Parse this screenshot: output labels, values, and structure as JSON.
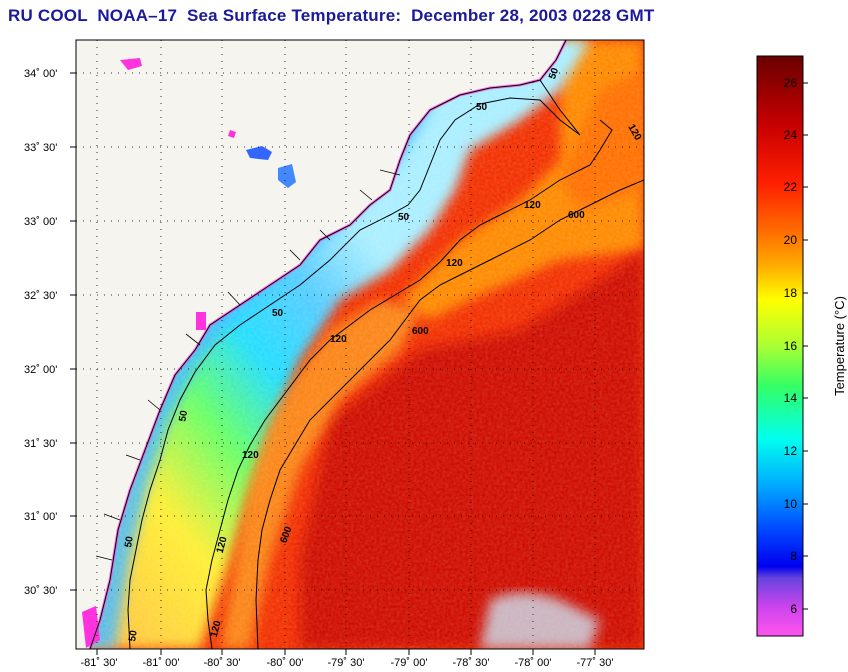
{
  "title": "RU COOL  NOAA–17  Sea Surface Temperature:  December 28, 2003 0228 GMT",
  "map": {
    "lat_labels": [
      "34˚ 00'",
      "33˚ 30'",
      "33˚ 00'",
      "32˚ 30'",
      "32˚ 00'",
      "31˚ 30'",
      "31˚ 00'",
      "30˚ 30'"
    ],
    "lon_labels": [
      "-81˚ 30'",
      "-81˚ 00'",
      "-80˚ 30'",
      "-80˚ 00'",
      "-79˚ 30'",
      "-79˚ 00'",
      "-78˚ 30'",
      "-78˚ 00'",
      "-77˚ 30'"
    ],
    "contour_labels": {
      "c50": "50",
      "c120": "120",
      "c600": "600"
    },
    "land_color": "#f5f3ec",
    "colors": {
      "cold": "#ff44dd",
      "warm": "#e81000"
    }
  },
  "colorbar": {
    "label": "Temperature (°C)",
    "ticks": [
      "26",
      "24",
      "22",
      "20",
      "18",
      "16",
      "14",
      "12",
      "10",
      "8",
      "6"
    ]
  }
}
